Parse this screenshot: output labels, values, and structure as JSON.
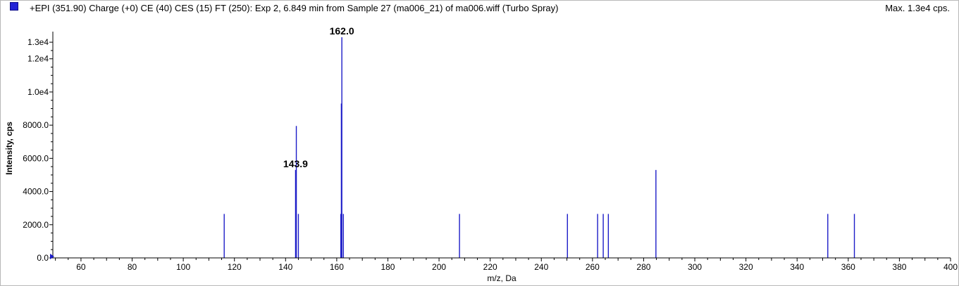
{
  "header": {
    "title": "+EPI (351.90) Charge (+0) CE (40) CES (15) FT (250): Exp 2, 6.849 min from Sample 27 (ma006_21) of ma006.wiff (Turbo Spray)",
    "max_text": "Max. 1.3e4 cps."
  },
  "colors": {
    "series": "#1c1cc8",
    "axis": "#000000",
    "frame": "#b8b8b8"
  },
  "chart_data": {
    "type": "bar",
    "title": "",
    "xlabel": "m/z, Da",
    "ylabel": "Intensity, cps",
    "xlim": [
      49,
      400
    ],
    "ylim": [
      0,
      13300
    ],
    "x_ticks": [
      60,
      80,
      100,
      120,
      140,
      160,
      180,
      200,
      220,
      240,
      260,
      280,
      300,
      320,
      340,
      360,
      380,
      400
    ],
    "y_ticks": [
      {
        "value": 0,
        "label": "0.0"
      },
      {
        "value": 2000,
        "label": "2000.0"
      },
      {
        "value": 4000,
        "label": "4000.0"
      },
      {
        "value": 6000,
        "label": "6000.0"
      },
      {
        "value": 8000,
        "label": "8000.0"
      },
      {
        "value": 10000,
        "label": "1.0e4"
      },
      {
        "value": 12000,
        "label": "1.2e4"
      },
      {
        "value": 13000,
        "label": "1.3e4"
      }
    ],
    "grid": false,
    "peaks": [
      {
        "mz": 116.0,
        "intensity": 2650
      },
      {
        "mz": 143.9,
        "intensity": 5300
      },
      {
        "mz": 144.2,
        "intensity": 7950
      },
      {
        "mz": 145.0,
        "intensity": 2650
      },
      {
        "mz": 161.6,
        "intensity": 2650
      },
      {
        "mz": 161.8,
        "intensity": 9300
      },
      {
        "mz": 162.0,
        "intensity": 13300
      },
      {
        "mz": 162.6,
        "intensity": 2650
      },
      {
        "mz": 208.0,
        "intensity": 2650
      },
      {
        "mz": 250.2,
        "intensity": 2650
      },
      {
        "mz": 262.0,
        "intensity": 2650
      },
      {
        "mz": 264.2,
        "intensity": 2650
      },
      {
        "mz": 266.2,
        "intensity": 2650
      },
      {
        "mz": 284.8,
        "intensity": 5300
      },
      {
        "mz": 352.0,
        "intensity": 2650
      },
      {
        "mz": 362.4,
        "intensity": 2650
      }
    ],
    "annotations": [
      {
        "text": "162.0",
        "mz": 162.0,
        "intensity": 13300
      },
      {
        "text": "143.9",
        "mz": 143.9,
        "intensity": 5300
      }
    ]
  }
}
